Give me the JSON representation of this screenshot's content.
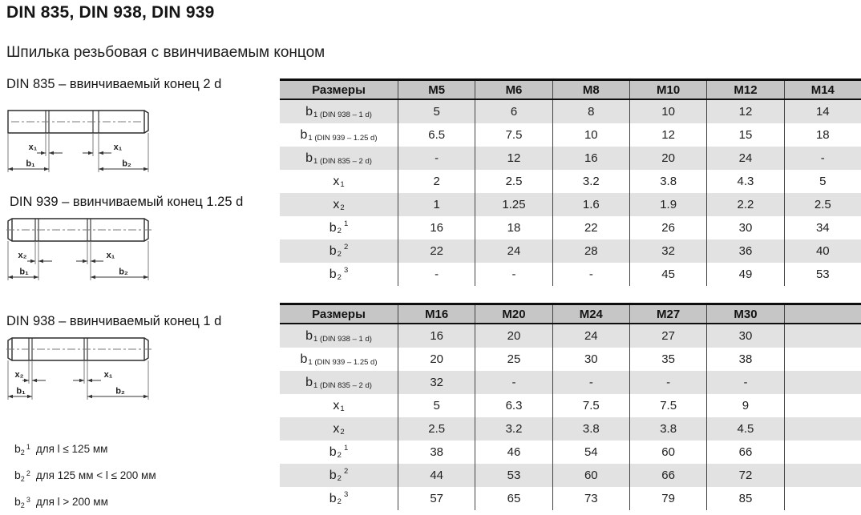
{
  "page": {
    "title": "DIN 835, DIN 938, DIN 939",
    "subtitle": "Шпилька резьбовая с ввинчиваемым концом"
  },
  "drawings": [
    {
      "title": "DIN 835 – ввинчиваемый конец 2 d",
      "dim_left_x": "x₁",
      "dim_right_x": "x₁",
      "dim_left_b": "b₁",
      "dim_right_b": "b₂"
    },
    {
      "title": "DIN 939 – ввинчиваемый конец 1.25 d",
      "dim_left_x": "x₂",
      "dim_right_x": "x₁",
      "dim_left_b": "b₁",
      "dim_right_b": "b₂"
    },
    {
      "title": "DIN 938 – ввинчиваемый конец 1 d",
      "dim_left_x": "x₂",
      "dim_right_x": "x₁",
      "dim_left_b": "b₁",
      "dim_right_b": "b₂"
    }
  ],
  "tables": [
    {
      "headers": [
        "Размеры",
        "M5",
        "M6",
        "M8",
        "M10",
        "M12",
        "M14"
      ],
      "rows": [
        {
          "label": {
            "main": "b",
            "sub": "1 (DIN 938 – 1 d)",
            "sup": ""
          },
          "values": [
            "5",
            "6",
            "8",
            "10",
            "12",
            "14"
          ]
        },
        {
          "label": {
            "main": "b",
            "sub": "1 (DIN 939 – 1.25 d)",
            "sup": ""
          },
          "values": [
            "6.5",
            "7.5",
            "10",
            "12",
            "15",
            "18"
          ]
        },
        {
          "label": {
            "main": "b",
            "sub": "1 (DIN 835 – 2 d)",
            "sup": ""
          },
          "values": [
            "-",
            "12",
            "16",
            "20",
            "24",
            "-"
          ]
        },
        {
          "label": {
            "main": "x",
            "sub": "1",
            "sup": ""
          },
          "values": [
            "2",
            "2.5",
            "3.2",
            "3.8",
            "4.3",
            "5"
          ]
        },
        {
          "label": {
            "main": "x",
            "sub": "2",
            "sup": ""
          },
          "values": [
            "1",
            "1.25",
            "1.6",
            "1.9",
            "2.2",
            "2.5"
          ]
        },
        {
          "label": {
            "main": "b",
            "sub": "2",
            "sup": "1"
          },
          "values": [
            "16",
            "18",
            "22",
            "26",
            "30",
            "34"
          ]
        },
        {
          "label": {
            "main": "b",
            "sub": "2",
            "sup": "2"
          },
          "values": [
            "22",
            "24",
            "28",
            "32",
            "36",
            "40"
          ]
        },
        {
          "label": {
            "main": "b",
            "sub": "2",
            "sup": "3"
          },
          "values": [
            "-",
            "-",
            "-",
            "45",
            "49",
            "53"
          ]
        }
      ]
    },
    {
      "headers": [
        "Размеры",
        "M16",
        "M20",
        "M24",
        "M27",
        "M30",
        ""
      ],
      "rows": [
        {
          "label": {
            "main": "b",
            "sub": "1 (DIN 938 – 1 d)",
            "sup": ""
          },
          "values": [
            "16",
            "20",
            "24",
            "27",
            "30",
            ""
          ]
        },
        {
          "label": {
            "main": "b",
            "sub": "1 (DIN 939 – 1.25 d)",
            "sup": ""
          },
          "values": [
            "20",
            "25",
            "30",
            "35",
            "38",
            ""
          ]
        },
        {
          "label": {
            "main": "b",
            "sub": "1 (DIN 835 – 2 d)",
            "sup": ""
          },
          "values": [
            "32",
            "-",
            "-",
            "-",
            "-",
            ""
          ]
        },
        {
          "label": {
            "main": "x",
            "sub": "1",
            "sup": ""
          },
          "values": [
            "5",
            "6.3",
            "7.5",
            "7.5",
            "9",
            ""
          ]
        },
        {
          "label": {
            "main": "x",
            "sub": "2",
            "sup": ""
          },
          "values": [
            "2.5",
            "3.2",
            "3.8",
            "3.8",
            "4.5",
            ""
          ]
        },
        {
          "label": {
            "main": "b",
            "sub": "2",
            "sup": "1"
          },
          "values": [
            "38",
            "46",
            "54",
            "60",
            "66",
            ""
          ]
        },
        {
          "label": {
            "main": "b",
            "sub": "2",
            "sup": "2"
          },
          "values": [
            "44",
            "53",
            "60",
            "66",
            "72",
            ""
          ]
        },
        {
          "label": {
            "main": "b",
            "sub": "2",
            "sup": "3"
          },
          "values": [
            "57",
            "65",
            "73",
            "79",
            "85",
            ""
          ]
        }
      ]
    }
  ],
  "footnotes": [
    {
      "main": "b",
      "sub": "2",
      "sup": "1",
      "text": "для l ≤ 125 мм"
    },
    {
      "main": "b",
      "sub": "2",
      "sup": "2",
      "text": "для 125 мм < l ≤ 200 мм"
    },
    {
      "main": "b",
      "sub": "2",
      "sup": "3",
      "text": "для l > 200 мм"
    }
  ],
  "colors": {
    "header_bg": "#c6c6c6",
    "row_alt_bg": "#e2e2e2",
    "border": "#0e0e0e"
  }
}
